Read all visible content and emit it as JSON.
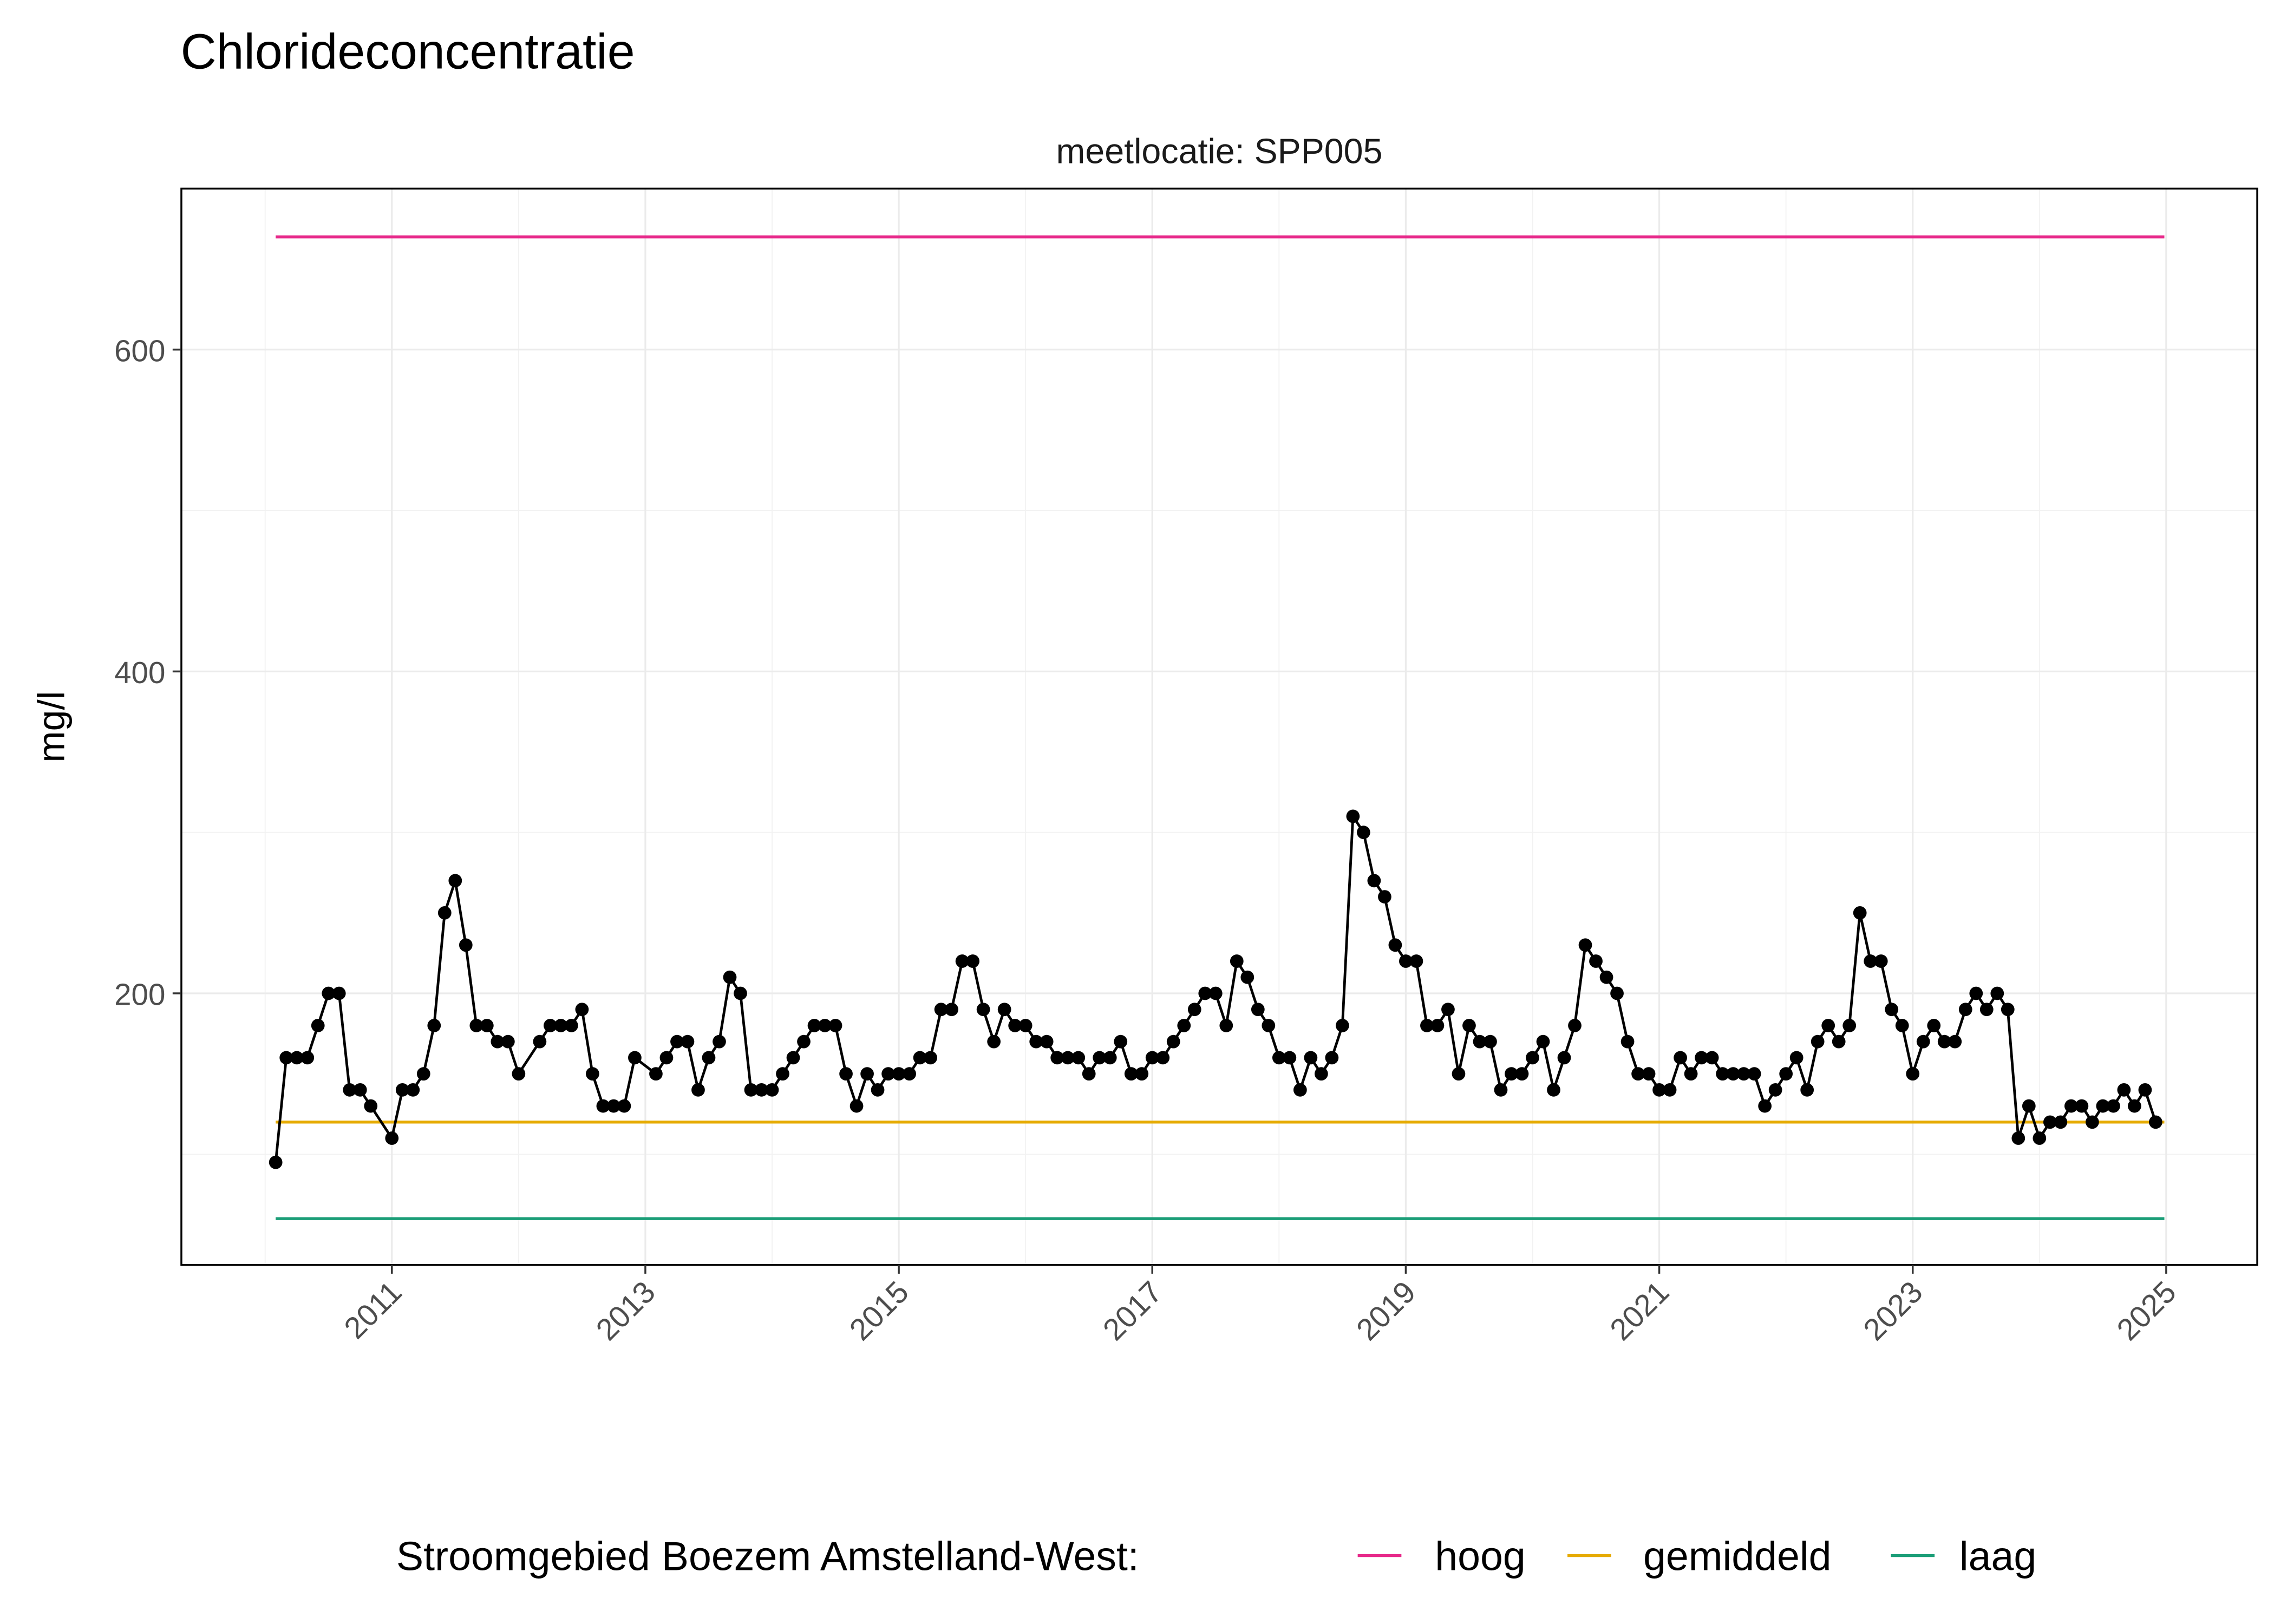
{
  "chart_data": {
    "type": "line",
    "title": "Chlorideconcentratie",
    "facet_label": "meetlocatie: SPP005",
    "xlabel": "",
    "ylabel": "mg/l",
    "ylim": [
      38,
      700
    ],
    "xlim": [
      "2009-11",
      "2025-03"
    ],
    "y_ticks": [
      200,
      400,
      600
    ],
    "x_ticks": [
      "2011",
      "2013",
      "2015",
      "2017",
      "2019",
      "2021",
      "2023",
      "2025"
    ],
    "grid": true,
    "legend": {
      "position": "bottom",
      "title": "Stroomgebied Boezem Amstelland-West:",
      "items": [
        {
          "label": "hoog",
          "color": "#E7298A"
        },
        {
          "label": "gemiddeld",
          "color": "#E6AB02"
        },
        {
          "label": "laag",
          "color": "#1B9E77"
        }
      ]
    },
    "reference_lines": [
      {
        "name": "hoog",
        "value": 670,
        "color": "#E7298A",
        "from": "2010-02",
        "to": "2024-12"
      },
      {
        "name": "gemiddeld",
        "value": 120,
        "color": "#E6AB02",
        "from": "2010-02",
        "to": "2024-12"
      },
      {
        "name": "laag",
        "value": 60,
        "color": "#1B9E77",
        "from": "2010-02",
        "to": "2024-12"
      }
    ],
    "series": [
      {
        "color": "#000000",
        "points": [
          [
            "2010-02",
            95
          ],
          [
            "2010-03",
            160
          ],
          [
            "2010-04",
            160
          ],
          [
            "2010-05",
            160
          ],
          [
            "2010-06",
            180
          ],
          [
            "2010-07",
            200
          ],
          [
            "2010-08",
            200
          ],
          [
            "2010-09",
            140
          ],
          [
            "2010-10",
            140
          ],
          [
            "2010-11",
            130
          ],
          [
            "2011-01",
            110
          ],
          [
            "2011-02",
            140
          ],
          [
            "2011-03",
            140
          ],
          [
            "2011-04",
            150
          ],
          [
            "2011-05",
            180
          ],
          [
            "2011-06",
            250
          ],
          [
            "2011-07",
            270
          ],
          [
            "2011-08",
            230
          ],
          [
            "2011-09",
            180
          ],
          [
            "2011-10",
            180
          ],
          [
            "2011-11",
            170
          ],
          [
            "2011-12",
            170
          ],
          [
            "2012-01",
            150
          ],
          [
            "2012-03",
            170
          ],
          [
            "2012-04",
            180
          ],
          [
            "2012-05",
            180
          ],
          [
            "2012-06",
            180
          ],
          [
            "2012-07",
            190
          ],
          [
            "2012-08",
            150
          ],
          [
            "2012-09",
            130
          ],
          [
            "2012-10",
            130
          ],
          [
            "2012-11",
            130
          ],
          [
            "2012-12",
            160
          ],
          [
            "2013-02",
            150
          ],
          [
            "2013-03",
            160
          ],
          [
            "2013-04",
            170
          ],
          [
            "2013-05",
            170
          ],
          [
            "2013-06",
            140
          ],
          [
            "2013-07",
            160
          ],
          [
            "2013-08",
            170
          ],
          [
            "2013-09",
            210
          ],
          [
            "2013-10",
            200
          ],
          [
            "2013-11",
            140
          ],
          [
            "2013-12",
            140
          ],
          [
            "2014-01",
            140
          ],
          [
            "2014-02",
            150
          ],
          [
            "2014-03",
            160
          ],
          [
            "2014-04",
            170
          ],
          [
            "2014-05",
            180
          ],
          [
            "2014-06",
            180
          ],
          [
            "2014-07",
            180
          ],
          [
            "2014-08",
            150
          ],
          [
            "2014-09",
            130
          ],
          [
            "2014-10",
            150
          ],
          [
            "2014-11",
            140
          ],
          [
            "2014-12",
            150
          ],
          [
            "2015-01",
            150
          ],
          [
            "2015-02",
            150
          ],
          [
            "2015-03",
            160
          ],
          [
            "2015-04",
            160
          ],
          [
            "2015-05",
            190
          ],
          [
            "2015-06",
            190
          ],
          [
            "2015-07",
            220
          ],
          [
            "2015-08",
            220
          ],
          [
            "2015-09",
            190
          ],
          [
            "2015-10",
            170
          ],
          [
            "2015-11",
            190
          ],
          [
            "2015-12",
            180
          ],
          [
            "2016-01",
            180
          ],
          [
            "2016-02",
            170
          ],
          [
            "2016-03",
            170
          ],
          [
            "2016-04",
            160
          ],
          [
            "2016-05",
            160
          ],
          [
            "2016-06",
            160
          ],
          [
            "2016-07",
            150
          ],
          [
            "2016-08",
            160
          ],
          [
            "2016-09",
            160
          ],
          [
            "2016-10",
            170
          ],
          [
            "2016-11",
            150
          ],
          [
            "2016-12",
            150
          ],
          [
            "2017-01",
            160
          ],
          [
            "2017-02",
            160
          ],
          [
            "2017-03",
            170
          ],
          [
            "2017-04",
            180
          ],
          [
            "2017-05",
            190
          ],
          [
            "2017-06",
            200
          ],
          [
            "2017-07",
            200
          ],
          [
            "2017-08",
            180
          ],
          [
            "2017-09",
            220
          ],
          [
            "2017-10",
            210
          ],
          [
            "2017-11",
            190
          ],
          [
            "2017-12",
            180
          ],
          [
            "2018-01",
            160
          ],
          [
            "2018-02",
            160
          ],
          [
            "2018-03",
            140
          ],
          [
            "2018-04",
            160
          ],
          [
            "2018-05",
            150
          ],
          [
            "2018-06",
            160
          ],
          [
            "2018-07",
            180
          ],
          [
            "2018-08",
            310
          ],
          [
            "2018-09",
            300
          ],
          [
            "2018-10",
            270
          ],
          [
            "2018-11",
            260
          ],
          [
            "2018-12",
            230
          ],
          [
            "2019-01",
            220
          ],
          [
            "2019-02",
            220
          ],
          [
            "2019-03",
            180
          ],
          [
            "2019-04",
            180
          ],
          [
            "2019-05",
            190
          ],
          [
            "2019-06",
            150
          ],
          [
            "2019-07",
            180
          ],
          [
            "2019-08",
            170
          ],
          [
            "2019-09",
            170
          ],
          [
            "2019-10",
            140
          ],
          [
            "2019-11",
            150
          ],
          [
            "2019-12",
            150
          ],
          [
            "2020-01",
            160
          ],
          [
            "2020-02",
            170
          ],
          [
            "2020-03",
            140
          ],
          [
            "2020-04",
            160
          ],
          [
            "2020-05",
            180
          ],
          [
            "2020-06",
            230
          ],
          [
            "2020-07",
            220
          ],
          [
            "2020-08",
            210
          ],
          [
            "2020-09",
            200
          ],
          [
            "2020-10",
            170
          ],
          [
            "2020-11",
            150
          ],
          [
            "2020-12",
            150
          ],
          [
            "2021-01",
            140
          ],
          [
            "2021-02",
            140
          ],
          [
            "2021-03",
            160
          ],
          [
            "2021-04",
            150
          ],
          [
            "2021-05",
            160
          ],
          [
            "2021-06",
            160
          ],
          [
            "2021-07",
            150
          ],
          [
            "2021-08",
            150
          ],
          [
            "2021-09",
            150
          ],
          [
            "2021-10",
            150
          ],
          [
            "2021-11",
            130
          ],
          [
            "2021-12",
            140
          ],
          [
            "2022-01",
            150
          ],
          [
            "2022-02",
            160
          ],
          [
            "2022-03",
            140
          ],
          [
            "2022-04",
            170
          ],
          [
            "2022-05",
            180
          ],
          [
            "2022-06",
            170
          ],
          [
            "2022-07",
            180
          ],
          [
            "2022-08",
            250
          ],
          [
            "2022-09",
            220
          ],
          [
            "2022-10",
            220
          ],
          [
            "2022-11",
            190
          ],
          [
            "2022-12",
            180
          ],
          [
            "2023-01",
            150
          ],
          [
            "2023-02",
            170
          ],
          [
            "2023-03",
            180
          ],
          [
            "2023-04",
            170
          ],
          [
            "2023-05",
            170
          ],
          [
            "2023-06",
            190
          ],
          [
            "2023-07",
            200
          ],
          [
            "2023-08",
            190
          ],
          [
            "2023-09",
            200
          ],
          [
            "2023-10",
            190
          ],
          [
            "2023-11",
            110
          ],
          [
            "2023-12",
            130
          ],
          [
            "2024-01",
            110
          ],
          [
            "2024-02",
            120
          ],
          [
            "2024-03",
            120
          ],
          [
            "2024-04",
            130
          ],
          [
            "2024-05",
            130
          ],
          [
            "2024-06",
            120
          ],
          [
            "2024-07",
            130
          ],
          [
            "2024-08",
            130
          ],
          [
            "2024-09",
            140
          ],
          [
            "2024-10",
            130
          ],
          [
            "2024-11",
            140
          ],
          [
            "2024-12",
            120
          ]
        ]
      }
    ]
  }
}
